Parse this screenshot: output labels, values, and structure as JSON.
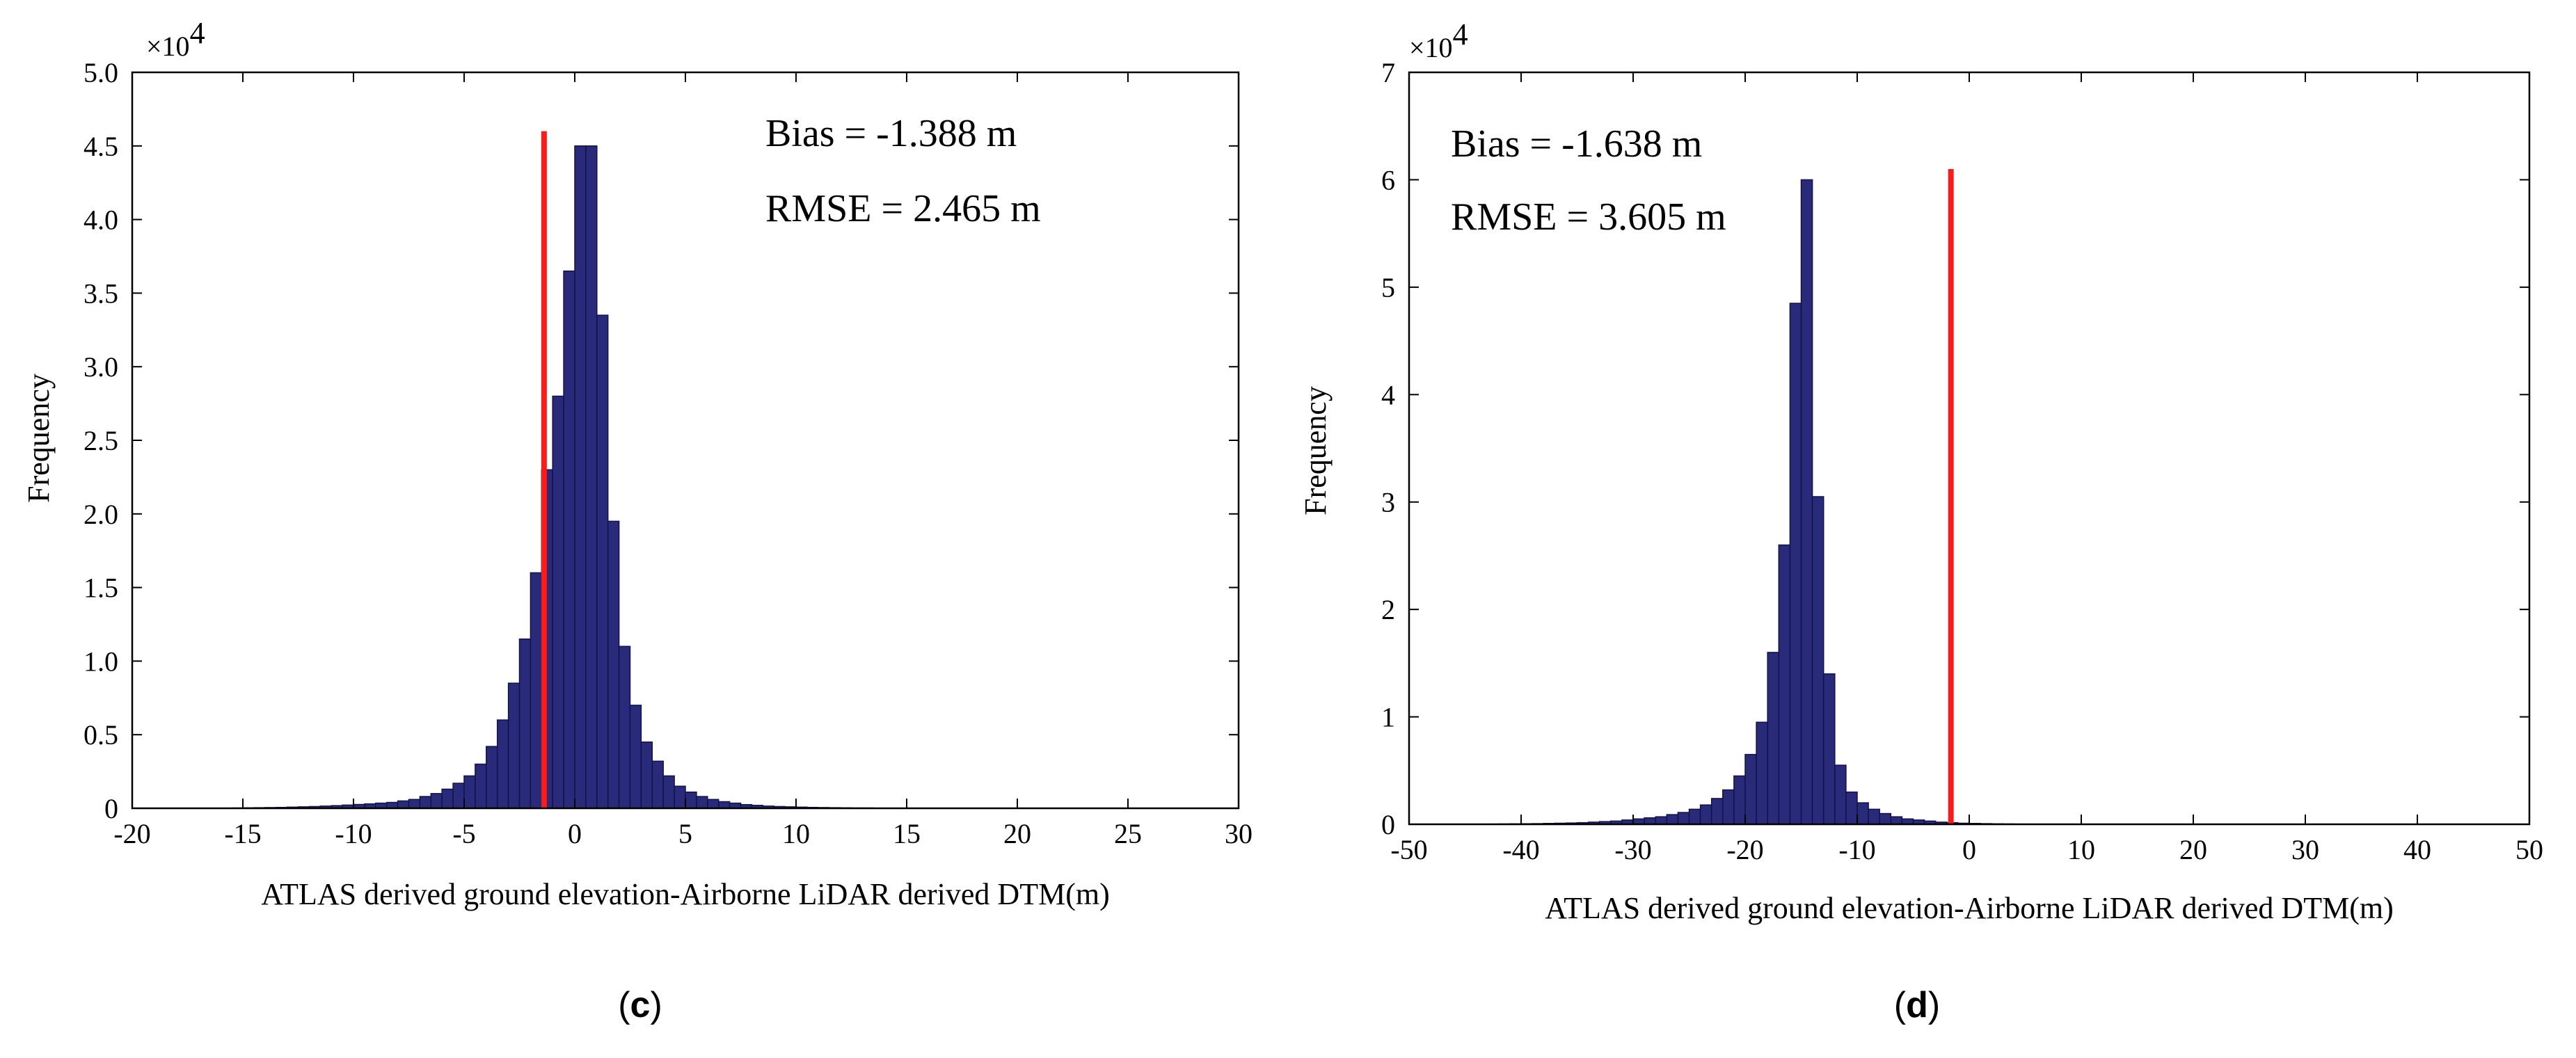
{
  "chart_data": [
    {
      "type": "bar",
      "panel": "c",
      "caption": {
        "open": "(",
        "letter": "c",
        "close": ")"
      },
      "multiplier": {
        "prefix": "×10",
        "exponent": "4"
      },
      "xlabel": "ATLAS derived ground elevation-Airborne LiDAR derived DTM(m)",
      "ylabel": "Frequency",
      "xlim": [
        -20,
        30
      ],
      "ylim": [
        0,
        5.0
      ],
      "xticks": [
        -20,
        -15,
        -10,
        -5,
        0,
        5,
        10,
        15,
        20,
        25,
        30
      ],
      "xtick_labels": [
        "-20",
        "-15",
        "-10",
        "-5",
        "0",
        "5",
        "10",
        "15",
        "20",
        "25",
        "30"
      ],
      "yticks": [
        0,
        0.5,
        1.0,
        1.5,
        2.0,
        2.5,
        3.0,
        3.5,
        4.0,
        4.5,
        5.0
      ],
      "ytick_labels": [
        "0",
        "0.5",
        "1.0",
        "1.5",
        "2.0",
        "2.5",
        "3.0",
        "3.5",
        "4.0",
        "4.5",
        "5.0"
      ],
      "bin_start": -20,
      "bin_width": 0.5,
      "values": [
        0,
        0,
        0,
        0,
        0,
        0,
        0,
        0,
        0,
        0.002,
        0.003,
        0.004,
        0.005,
        0.006,
        0.008,
        0.01,
        0.012,
        0.015,
        0.018,
        0.022,
        0.026,
        0.03,
        0.035,
        0.04,
        0.05,
        0.06,
        0.08,
        0.1,
        0.13,
        0.17,
        0.22,
        0.3,
        0.42,
        0.6,
        0.85,
        1.15,
        1.6,
        2.3,
        2.8,
        3.65,
        4.5,
        4.5,
        3.35,
        1.95,
        1.1,
        0.7,
        0.45,
        0.32,
        0.22,
        0.15,
        0.11,
        0.08,
        0.06,
        0.045,
        0.035,
        0.025,
        0.02,
        0.015,
        0.012,
        0.01,
        0.008,
        0.006,
        0.005,
        0.004,
        0.003,
        0.002,
        0.002,
        0.001,
        0.001,
        0.001,
        0,
        0,
        0,
        0,
        0,
        0,
        0,
        0,
        0,
        0,
        0,
        0,
        0,
        0,
        0,
        0,
        0,
        0,
        0,
        0,
        0,
        0,
        0,
        0,
        0,
        0,
        0,
        0,
        0,
        0
      ],
      "mean_line_x": -1.388,
      "mean_line_top": 4.6,
      "annotations": [
        "Bias = -1.388 m",
        "RMSE = 2.465 m"
      ],
      "bar_color": "#2a2a7a",
      "bar_edge": "#12124a",
      "line_color": "#ff1a1a",
      "grid": false
    },
    {
      "type": "bar",
      "panel": "d",
      "caption": {
        "open": "(",
        "letter": "d",
        "close": ")"
      },
      "multiplier": {
        "prefix": "×10",
        "exponent": "4"
      },
      "xlabel": "ATLAS derived ground elevation-Airborne LiDAR derived DTM(m)",
      "ylabel": "Frequency",
      "xlim": [
        -50,
        50
      ],
      "ylim": [
        0,
        7
      ],
      "xticks": [
        -50,
        -40,
        -30,
        -20,
        -10,
        0,
        10,
        20,
        30,
        40,
        50
      ],
      "xtick_labels": [
        "-50",
        "-40",
        "-30",
        "-20",
        "-10",
        "0",
        "10",
        "20",
        "30",
        "40",
        "50"
      ],
      "yticks": [
        0,
        1,
        2,
        3,
        4,
        5,
        6,
        7
      ],
      "ytick_labels": [
        "0",
        "1",
        "2",
        "3",
        "4",
        "5",
        "6",
        "7"
      ],
      "bin_start": -50,
      "bin_width": 1,
      "values": [
        0,
        0,
        0,
        0,
        0,
        0,
        0,
        0.002,
        0.003,
        0.004,
        0.005,
        0.006,
        0.008,
        0.01,
        0.012,
        0.015,
        0.02,
        0.025,
        0.03,
        0.04,
        0.05,
        0.06,
        0.07,
        0.09,
        0.11,
        0.14,
        0.18,
        0.24,
        0.32,
        0.45,
        0.65,
        0.95,
        1.6,
        2.6,
        4.85,
        6.0,
        3.05,
        1.4,
        0.55,
        0.3,
        0.2,
        0.14,
        0.1,
        0.07,
        0.05,
        0.04,
        0.03,
        0.02,
        0.015,
        0.01,
        0.008,
        0.006,
        0.004,
        0.003,
        0.002,
        0.001,
        0.001,
        0,
        0,
        0,
        0,
        0,
        0,
        0,
        0,
        0,
        0,
        0,
        0,
        0,
        0,
        0,
        0,
        0,
        0,
        0,
        0,
        0,
        0,
        0,
        0,
        0,
        0,
        0,
        0,
        0,
        0,
        0,
        0,
        0,
        0,
        0,
        0,
        0,
        0,
        0,
        0,
        0,
        0,
        0
      ],
      "mean_line_x": -1.638,
      "mean_line_top": 6.1,
      "annotations": [
        "Bias = -1.638 m",
        "RMSE = 3.605 m"
      ],
      "bar_color": "#2a2a7a",
      "bar_edge": "#12124a",
      "line_color": "#ff1a1a",
      "grid": false
    }
  ]
}
